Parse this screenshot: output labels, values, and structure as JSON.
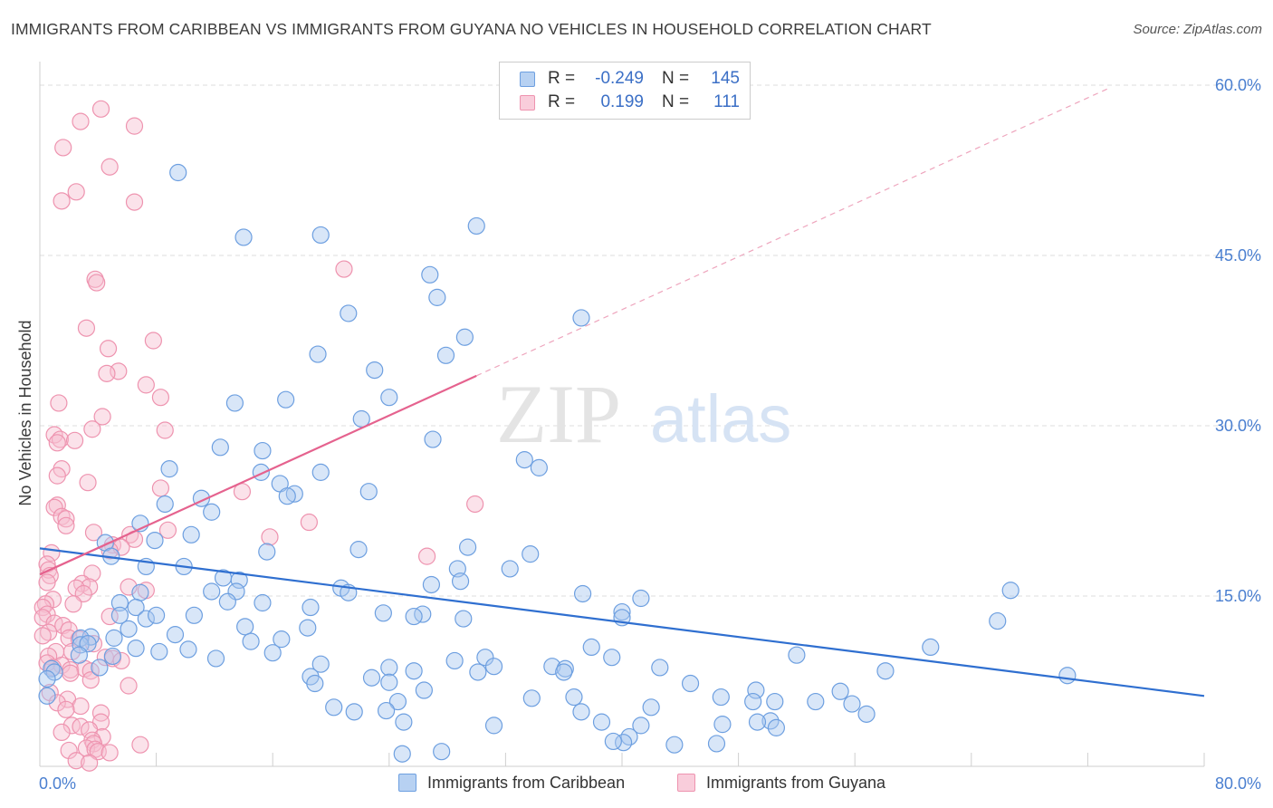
{
  "title": "IMMIGRANTS FROM CARIBBEAN VS IMMIGRANTS FROM GUYANA NO VEHICLES IN HOUSEHOLD CORRELATION CHART",
  "source": "Source: ZipAtlas.com",
  "watermark": {
    "zip": "ZIP",
    "atlas": "atlas"
  },
  "colors": {
    "caribbean_fill": "#a9c8ef",
    "caribbean_stroke": "#6d9fe0",
    "caribbean_line": "#2f6fd0",
    "guyana_fill": "#f7bfd0",
    "guyana_stroke": "#ee93af",
    "guyana_line": "#e5628e",
    "tick_text": "#4a7fd0",
    "grid": "#dddddd"
  },
  "legend": {
    "rows": [
      {
        "r_label": "R =",
        "r_value": "-0.249",
        "n_label": "N =",
        "n_value": "145"
      },
      {
        "r_label": "R =",
        "r_value": "0.199",
        "n_label": "N =",
        "n_value": "111"
      }
    ]
  },
  "chart_data": {
    "type": "scatter",
    "title": "IMMIGRANTS FROM CARIBBEAN VS IMMIGRANTS FROM GUYANA NO VEHICLES IN HOUSEHOLD CORRELATION CHART",
    "xlabel": "",
    "ylabel": "No Vehicles in Household",
    "xlim": [
      0,
      80
    ],
    "ylim": [
      0,
      60
    ],
    "x_tick_labels": [
      "0.0%",
      "80.0%"
    ],
    "y_ticks": [
      15,
      30,
      45,
      60
    ],
    "y_tick_labels": [
      "15.0%",
      "30.0%",
      "45.0%",
      "60.0%"
    ],
    "grid": true,
    "series": [
      {
        "name": "Immigrants from Caribbean",
        "r": -0.249,
        "n": 145,
        "trend": {
          "x": [
            0,
            80
          ],
          "y": [
            19.2,
            6.2
          ]
        },
        "points": [
          [
            9.5,
            52.3
          ],
          [
            14.0,
            46.6
          ],
          [
            19.3,
            46.8
          ],
          [
            30.0,
            47.6
          ],
          [
            26.8,
            43.3
          ],
          [
            27.3,
            41.3
          ],
          [
            21.2,
            39.9
          ],
          [
            37.2,
            39.5
          ],
          [
            29.2,
            37.8
          ],
          [
            19.1,
            36.3
          ],
          [
            27.9,
            36.2
          ],
          [
            23.0,
            34.9
          ],
          [
            16.9,
            32.3
          ],
          [
            24.0,
            32.5
          ],
          [
            13.4,
            32.0
          ],
          [
            22.1,
            30.6
          ],
          [
            27.0,
            28.8
          ],
          [
            12.4,
            28.1
          ],
          [
            15.3,
            27.8
          ],
          [
            33.3,
            27.0
          ],
          [
            34.3,
            26.3
          ],
          [
            8.9,
            26.2
          ],
          [
            19.3,
            25.9
          ],
          [
            15.2,
            25.9
          ],
          [
            16.5,
            24.9
          ],
          [
            17.5,
            24.0
          ],
          [
            17.0,
            23.8
          ],
          [
            22.6,
            24.2
          ],
          [
            11.1,
            23.6
          ],
          [
            8.6,
            23.1
          ],
          [
            11.8,
            22.4
          ],
          [
            6.9,
            21.4
          ],
          [
            10.4,
            20.4
          ],
          [
            4.5,
            19.7
          ],
          [
            7.9,
            19.9
          ],
          [
            29.4,
            19.3
          ],
          [
            21.9,
            19.1
          ],
          [
            15.6,
            18.9
          ],
          [
            33.7,
            18.7
          ],
          [
            4.9,
            18.5
          ],
          [
            9.9,
            17.6
          ],
          [
            7.3,
            17.6
          ],
          [
            28.7,
            17.4
          ],
          [
            32.3,
            17.4
          ],
          [
            12.6,
            16.6
          ],
          [
            13.7,
            16.4
          ],
          [
            28.9,
            16.3
          ],
          [
            26.9,
            16.0
          ],
          [
            20.7,
            15.7
          ],
          [
            11.8,
            15.4
          ],
          [
            6.9,
            15.3
          ],
          [
            13.5,
            15.4
          ],
          [
            21.2,
            15.3
          ],
          [
            12.9,
            14.5
          ],
          [
            37.3,
            15.2
          ],
          [
            41.3,
            14.8
          ],
          [
            5.5,
            14.4
          ],
          [
            15.3,
            14.4
          ],
          [
            6.6,
            14.0
          ],
          [
            18.6,
            14.0
          ],
          [
            23.6,
            13.5
          ],
          [
            26.3,
            13.4
          ],
          [
            25.7,
            13.2
          ],
          [
            40.0,
            13.6
          ],
          [
            40.0,
            13.1
          ],
          [
            5.5,
            13.3
          ],
          [
            7.3,
            13.0
          ],
          [
            8.0,
            13.3
          ],
          [
            10.6,
            13.3
          ],
          [
            29.1,
            13.0
          ],
          [
            66.7,
            15.5
          ],
          [
            65.8,
            12.8
          ],
          [
            6.1,
            12.1
          ],
          [
            14.1,
            12.3
          ],
          [
            18.4,
            12.2
          ],
          [
            9.3,
            11.6
          ],
          [
            3.5,
            11.4
          ],
          [
            5.1,
            11.3
          ],
          [
            2.8,
            11.3
          ],
          [
            14.5,
            11.0
          ],
          [
            16.6,
            11.2
          ],
          [
            2.8,
            10.7
          ],
          [
            3.3,
            10.8
          ],
          [
            6.6,
            10.4
          ],
          [
            8.2,
            10.1
          ],
          [
            10.2,
            10.3
          ],
          [
            16.0,
            10.0
          ],
          [
            37.9,
            10.5
          ],
          [
            39.3,
            9.6
          ],
          [
            52.0,
            9.8
          ],
          [
            61.2,
            10.5
          ],
          [
            2.7,
            9.8
          ],
          [
            5.0,
            9.7
          ],
          [
            12.1,
            9.5
          ],
          [
            30.6,
            9.6
          ],
          [
            28.5,
            9.3
          ],
          [
            19.3,
            9.0
          ],
          [
            0.8,
            8.6
          ],
          [
            4.1,
            8.7
          ],
          [
            24.0,
            8.7
          ],
          [
            31.2,
            8.8
          ],
          [
            35.2,
            8.8
          ],
          [
            36.1,
            8.6
          ],
          [
            42.6,
            8.7
          ],
          [
            1.0,
            8.3
          ],
          [
            25.7,
            8.4
          ],
          [
            30.1,
            8.3
          ],
          [
            36.0,
            8.3
          ],
          [
            58.1,
            8.4
          ],
          [
            22.8,
            7.8
          ],
          [
            18.6,
            7.9
          ],
          [
            0.5,
            7.7
          ],
          [
            70.6,
            8.0
          ],
          [
            24.0,
            7.4
          ],
          [
            18.9,
            7.3
          ],
          [
            44.7,
            7.3
          ],
          [
            26.4,
            6.7
          ],
          [
            49.2,
            6.7
          ],
          [
            55.0,
            6.6
          ],
          [
            0.5,
            6.2
          ],
          [
            33.8,
            6.0
          ],
          [
            46.8,
            6.1
          ],
          [
            24.6,
            5.7
          ],
          [
            36.7,
            6.1
          ],
          [
            49.0,
            5.7
          ],
          [
            50.5,
            5.7
          ],
          [
            53.3,
            5.7
          ],
          [
            55.8,
            5.5
          ],
          [
            42.0,
            5.2
          ],
          [
            20.2,
            5.2
          ],
          [
            21.6,
            4.8
          ],
          [
            23.8,
            4.9
          ],
          [
            37.2,
            4.8
          ],
          [
            56.8,
            4.6
          ],
          [
            50.2,
            4.0
          ],
          [
            49.3,
            3.9
          ],
          [
            38.6,
            3.9
          ],
          [
            25.0,
            3.9
          ],
          [
            31.2,
            3.6
          ],
          [
            41.3,
            3.6
          ],
          [
            46.9,
            3.7
          ],
          [
            50.6,
            3.4
          ],
          [
            40.5,
            2.6
          ],
          [
            40.1,
            2.1
          ],
          [
            43.6,
            1.9
          ],
          [
            27.6,
            1.3
          ],
          [
            46.5,
            2.0
          ],
          [
            24.9,
            1.1
          ],
          [
            39.4,
            2.2
          ]
        ]
      },
      {
        "name": "Immigrants from Guyana",
        "r": 0.199,
        "n": 111,
        "trend": {
          "x": [
            0,
            30
          ],
          "y": [
            16.9,
            34.4
          ]
        },
        "trend_extension": {
          "x": [
            30,
            73.4
          ],
          "y": [
            34.4,
            59.7
          ]
        },
        "points": [
          [
            4.2,
            57.9
          ],
          [
            2.8,
            56.8
          ],
          [
            6.5,
            56.4
          ],
          [
            1.6,
            54.5
          ],
          [
            4.8,
            52.8
          ],
          [
            2.5,
            50.6
          ],
          [
            1.5,
            49.8
          ],
          [
            6.5,
            49.7
          ],
          [
            20.9,
            43.8
          ],
          [
            3.8,
            42.9
          ],
          [
            3.9,
            42.6
          ],
          [
            3.2,
            38.6
          ],
          [
            7.8,
            37.5
          ],
          [
            4.7,
            36.8
          ],
          [
            5.4,
            34.8
          ],
          [
            4.6,
            34.6
          ],
          [
            7.3,
            33.6
          ],
          [
            8.3,
            32.5
          ],
          [
            1.3,
            32.0
          ],
          [
            4.3,
            30.8
          ],
          [
            3.6,
            29.7
          ],
          [
            8.6,
            29.6
          ],
          [
            1.0,
            29.2
          ],
          [
            1.4,
            28.8
          ],
          [
            2.4,
            28.7
          ],
          [
            1.2,
            28.5
          ],
          [
            1.5,
            26.2
          ],
          [
            1.2,
            25.6
          ],
          [
            3.3,
            25.0
          ],
          [
            8.3,
            24.5
          ],
          [
            13.9,
            24.2
          ],
          [
            1.2,
            23.0
          ],
          [
            1.0,
            22.8
          ],
          [
            1.5,
            22.0
          ],
          [
            1.8,
            21.8
          ],
          [
            29.9,
            23.1
          ],
          [
            18.5,
            21.5
          ],
          [
            1.8,
            21.2
          ],
          [
            8.8,
            20.8
          ],
          [
            3.7,
            20.6
          ],
          [
            6.2,
            20.4
          ],
          [
            15.8,
            20.2
          ],
          [
            6.5,
            20.0
          ],
          [
            5.0,
            19.5
          ],
          [
            5.6,
            19.3
          ],
          [
            4.8,
            19.0
          ],
          [
            0.8,
            18.8
          ],
          [
            26.6,
            18.5
          ],
          [
            0.5,
            17.8
          ],
          [
            0.6,
            17.3
          ],
          [
            0.7,
            16.8
          ],
          [
            3.6,
            17.0
          ],
          [
            0.5,
            16.2
          ],
          [
            2.9,
            16.1
          ],
          [
            3.4,
            15.8
          ],
          [
            6.1,
            15.8
          ],
          [
            2.5,
            15.7
          ],
          [
            7.3,
            15.5
          ],
          [
            3.0,
            15.2
          ],
          [
            0.9,
            14.7
          ],
          [
            0.4,
            14.3
          ],
          [
            2.3,
            14.3
          ],
          [
            0.2,
            14.0
          ],
          [
            0.5,
            13.4
          ],
          [
            0.2,
            13.1
          ],
          [
            4.8,
            13.2
          ],
          [
            1.0,
            12.6
          ],
          [
            1.6,
            12.4
          ],
          [
            2.0,
            12.0
          ],
          [
            0.6,
            11.8
          ],
          [
            0.2,
            11.5
          ],
          [
            2.0,
            11.3
          ],
          [
            2.7,
            11.2
          ],
          [
            3.7,
            10.8
          ],
          [
            1.1,
            10.1
          ],
          [
            2.2,
            10.1
          ],
          [
            0.6,
            9.7
          ],
          [
            4.5,
            9.6
          ],
          [
            5.0,
            9.5
          ],
          [
            5.6,
            9.3
          ],
          [
            0.5,
            9.1
          ],
          [
            1.5,
            8.9
          ],
          [
            0.9,
            8.7
          ],
          [
            2.1,
            8.5
          ],
          [
            3.1,
            8.6
          ],
          [
            3.5,
            8.4
          ],
          [
            2.1,
            8.2
          ],
          [
            3.5,
            7.6
          ],
          [
            6.1,
            7.1
          ],
          [
            0.7,
            6.5
          ],
          [
            1.9,
            5.9
          ],
          [
            1.2,
            5.6
          ],
          [
            2.8,
            5.3
          ],
          [
            1.8,
            5.0
          ],
          [
            4.2,
            4.7
          ],
          [
            4.2,
            3.9
          ],
          [
            2.2,
            3.6
          ],
          [
            2.8,
            3.5
          ],
          [
            3.4,
            3.2
          ],
          [
            1.5,
            3.0
          ],
          [
            4.3,
            2.6
          ],
          [
            3.6,
            2.3
          ],
          [
            3.7,
            2.0
          ],
          [
            6.9,
            1.9
          ],
          [
            3.2,
            1.6
          ],
          [
            3.8,
            1.5
          ],
          [
            2.0,
            1.4
          ],
          [
            4.0,
            1.3
          ],
          [
            4.8,
            1.2
          ],
          [
            2.5,
            0.5
          ],
          [
            3.4,
            0.3
          ]
        ]
      }
    ]
  },
  "bottom_legend": [
    {
      "label": "Immigrants from Caribbean"
    },
    {
      "label": "Immigrants from Guyana"
    }
  ]
}
